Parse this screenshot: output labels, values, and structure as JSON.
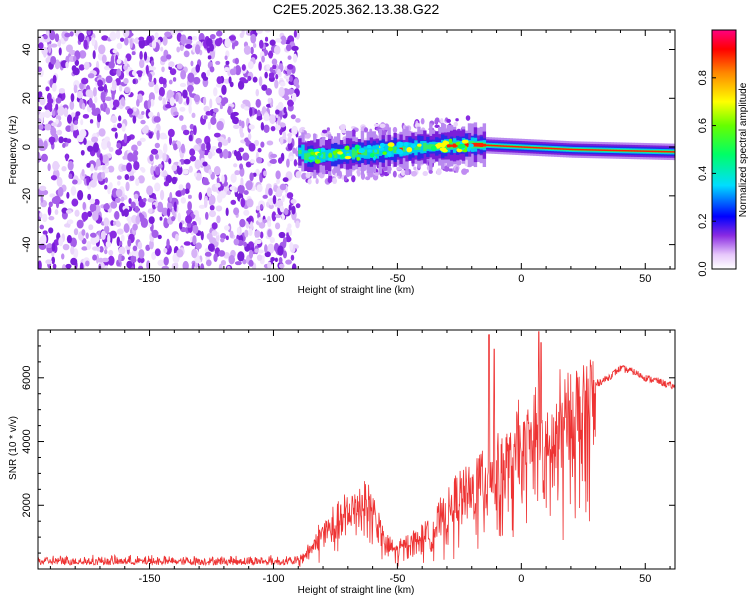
{
  "chart_data": [
    {
      "type": "heatmap",
      "title": "C2E5.2025.362.13.38.G22",
      "xlabel": "Height of straight line (km)",
      "ylabel": "Frequency (Hz)",
      "xlim": [
        -195,
        62
      ],
      "ylim": [
        -50,
        48
      ],
      "xticks": [
        -150,
        -100,
        -50,
        0,
        50
      ],
      "yticks": [
        -40,
        -20,
        0,
        20,
        40
      ],
      "colorbar": {
        "label": "Normalized spectral amplitude",
        "range": [
          0,
          1
        ],
        "ticks": [
          "0.0",
          "0.2",
          "0.4",
          "0.6",
          "0.8"
        ]
      },
      "features": {
        "noise_region_km": [
          -195,
          -90
        ],
        "signal_track": [
          {
            "x": -88,
            "f": -4
          },
          {
            "x": -60,
            "f": -2
          },
          {
            "x": -40,
            "f": 0
          },
          {
            "x": -20,
            "f": 1
          },
          {
            "x": 0,
            "f": 0
          },
          {
            "x": 20,
            "f": -1
          },
          {
            "x": 62,
            "f": -2
          }
        ]
      }
    },
    {
      "type": "line",
      "xlabel": "Height of straight line (km)",
      "ylabel": "SNR (10 * v/v)",
      "xlim": [
        -195,
        62
      ],
      "ylim": [
        0,
        7500
      ],
      "xticks": [
        -150,
        -100,
        -50,
        0,
        50
      ],
      "yticks": [
        2000,
        4000,
        6000
      ],
      "series": [
        {
          "name": "SNR",
          "color": "#ee3333",
          "envelope_x": [
            -195,
            -150,
            -100,
            -90,
            -85,
            -80,
            -70,
            -65,
            -60,
            -55,
            -50,
            -45,
            -40,
            -35,
            -30,
            -25,
            -20,
            -15,
            -10,
            -5,
            0,
            5,
            8,
            10,
            15,
            20,
            25,
            30,
            35,
            40,
            45,
            50,
            55,
            62
          ],
          "envelope_y": [
            250,
            250,
            250,
            280,
            700,
            1300,
            1900,
            2400,
            2100,
            900,
            650,
            950,
            1100,
            1500,
            1900,
            2500,
            2700,
            3400,
            3400,
            3700,
            4000,
            4500,
            4400,
            3900,
            4800,
            5300,
            5500,
            5800,
            6000,
            6300,
            6200,
            6000,
            5900,
            5700
          ],
          "spikes": [
            {
              "x": -13,
              "y": 7350
            },
            {
              "x": -11,
              "y": 6900
            },
            {
              "x": 7,
              "y": 7450
            },
            {
              "x": 8,
              "y": 7100
            }
          ]
        }
      ]
    }
  ]
}
